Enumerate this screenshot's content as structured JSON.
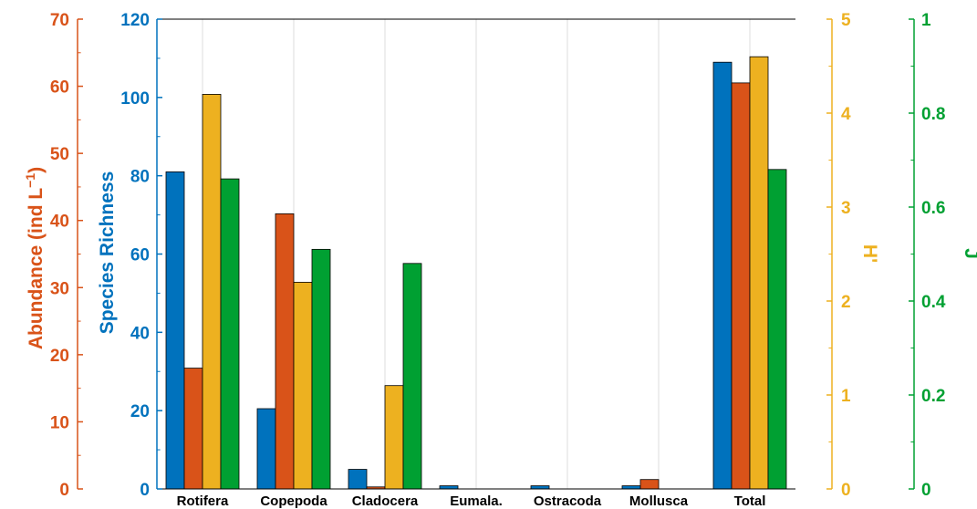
{
  "chart_data": {
    "type": "bar",
    "categories": [
      "Rotifera",
      "Copepoda",
      "Cladocera",
      "Eumala.",
      "Ostracoda",
      "Mollusca",
      "Total"
    ],
    "series": [
      {
        "values": [
          81,
          20.5,
          5,
          0.8,
          0.8,
          0.8,
          109
        ],
        "axis": "species_richness",
        "color": "#0072bd"
      },
      {
        "values": [
          18,
          41,
          0.3,
          0,
          0,
          1.4,
          60.5
        ],
        "axis": "abundance",
        "color": "#d95319"
      },
      {
        "values": [
          4.2,
          2.2,
          1.1,
          0,
          0,
          0,
          4.6
        ],
        "axis": "h_prime",
        "color": "#edb120"
      },
      {
        "values": [
          0.66,
          0.51,
          0.48,
          0,
          0,
          0,
          0.68
        ],
        "axis": "j",
        "color": "#00a032"
      }
    ],
    "axes": {
      "abundance": {
        "label": "Abundance (ind L",
        "label_sup": "−1",
        "label_end": ")",
        "ylim": [
          0,
          70
        ],
        "ticks": [
          "0",
          "10",
          "20",
          "30",
          "40",
          "50",
          "60",
          "70"
        ],
        "color": "#d95319"
      },
      "species_richness": {
        "label": "Species Richness",
        "ylim": [
          0,
          120
        ],
        "ticks": [
          "0",
          "20",
          "40",
          "60",
          "80",
          "100",
          "120"
        ],
        "color": "#0072bd"
      },
      "h_prime": {
        "label": "H'",
        "ylim": [
          0,
          5
        ],
        "ticks": [
          "0",
          "1",
          "2",
          "3",
          "4",
          "5"
        ],
        "color": "#edb120"
      },
      "j": {
        "label": "J",
        "ylim": [
          0,
          1
        ],
        "ticks": [
          "0",
          "0.2",
          "0.4",
          "0.6",
          "0.8",
          "1"
        ],
        "color": "#00a032"
      }
    },
    "grid": true
  }
}
